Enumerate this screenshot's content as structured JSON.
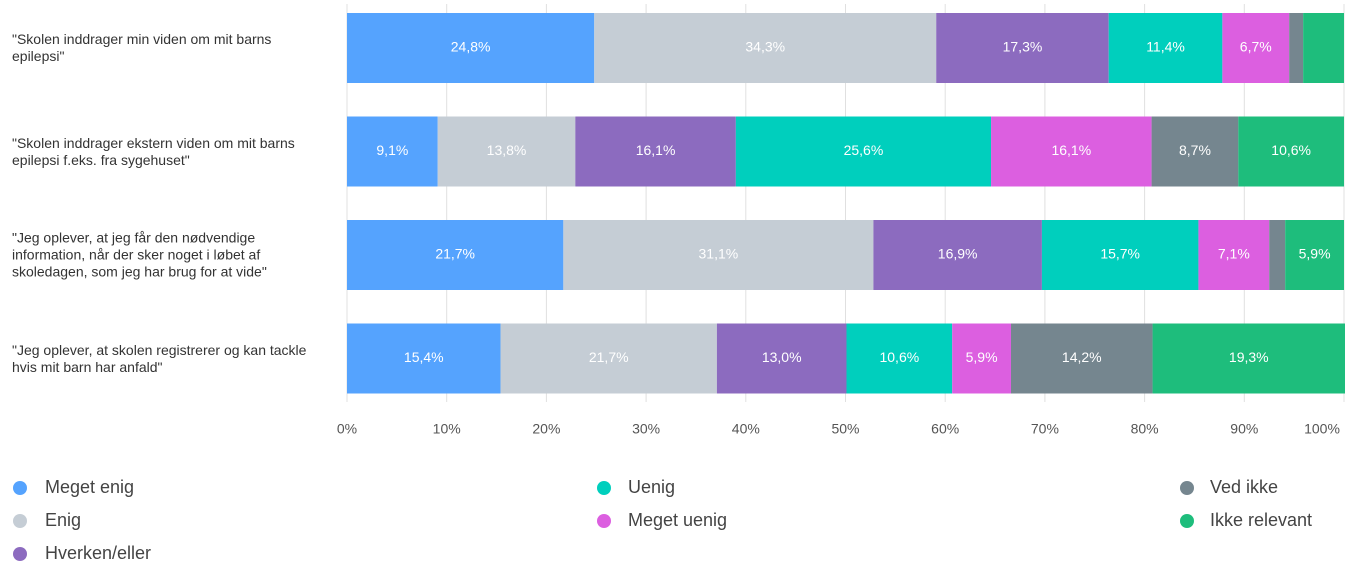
{
  "chart_data": {
    "type": "stacked-bar",
    "orientation": "horizontal",
    "categories": [
      "\"Skolen inddrager min viden om mit barns epilepsi\"",
      "\"Skolen inddrager ekstern viden om mit barns epilepsi f.eks. fra sygehuset\"",
      "\"Jeg oplever, at jeg får den nødvendige information, når der sker noget i løbet af skoledagen, som jeg har brug for at vide\"",
      "\"Jeg oplever, at skolen registrerer og kan tackle hvis mit barn har anfald\""
    ],
    "series": [
      {
        "name": "Meget enig",
        "color": "#55a3fe",
        "values": [
          24.8,
          9.1,
          21.7,
          15.4
        ],
        "value_labels": [
          "24,8%",
          "9,1%",
          "21,7%",
          "15,4%"
        ]
      },
      {
        "name": "Enig",
        "color": "#c5cdd5",
        "values": [
          34.3,
          13.8,
          31.1,
          21.7
        ],
        "value_labels": [
          "34,3%",
          "13,8%",
          "31,1%",
          "21,7%"
        ]
      },
      {
        "name": "Hverken/eller",
        "color": "#8c6bbf",
        "values": [
          17.3,
          16.1,
          16.9,
          13.0
        ],
        "value_labels": [
          "17,3%",
          "16,1%",
          "16,9%",
          "13,0%"
        ]
      },
      {
        "name": "Uenig",
        "color": "#00cfbd",
        "values": [
          11.4,
          25.6,
          15.7,
          10.6
        ],
        "value_labels": [
          "11,4%",
          "25,6%",
          "15,7%",
          "10,6%"
        ]
      },
      {
        "name": "Meget uenig",
        "color": "#dc5fe0",
        "values": [
          6.7,
          16.1,
          7.1,
          5.9
        ],
        "value_labels": [
          "6,7%",
          "16,1%",
          "7,1%",
          "5,9%"
        ]
      },
      {
        "name": "Ved ikke",
        "color": "#75868f",
        "values": [
          1.4,
          8.7,
          1.6,
          14.2
        ],
        "value_labels": [
          null,
          "8,7%",
          null,
          "14,2%"
        ]
      },
      {
        "name": "Ikke relevant",
        "color": "#1ebd7c",
        "values": [
          4.1,
          10.6,
          5.9,
          19.3
        ],
        "value_labels": [
          null,
          "10,6%",
          "5,9%",
          "19,3%"
        ]
      }
    ],
    "xlim": [
      0,
      100
    ],
    "xticks": [
      {
        "value": 0,
        "label": "0%"
      },
      {
        "value": 10,
        "label": "10%"
      },
      {
        "value": 20,
        "label": "20%"
      },
      {
        "value": 30,
        "label": "30%"
      },
      {
        "value": 40,
        "label": "40%"
      },
      {
        "value": 50,
        "label": "50%"
      },
      {
        "value": 60,
        "label": "60%"
      },
      {
        "value": 70,
        "label": "70%"
      },
      {
        "value": 80,
        "label": "80%"
      },
      {
        "value": 90,
        "label": "90%"
      },
      {
        "value": 100,
        "label": "100%"
      }
    ],
    "grid": true,
    "legend": "bottom"
  }
}
